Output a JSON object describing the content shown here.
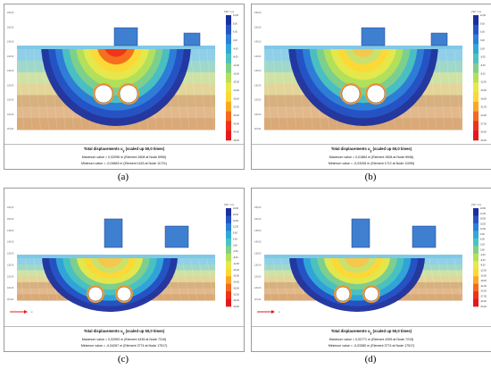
{
  "legend": {
    "unit": "[*10⁻³ m]",
    "colors": [
      "#e31a1c",
      "#f0321a",
      "#f46a1e",
      "#f9a825",
      "#fdd835",
      "#e8e84a",
      "#b5e05a",
      "#7fd08a",
      "#4cc3c0",
      "#31a9d8",
      "#2e7fd8",
      "#2554c6",
      "#1b2f9e"
    ]
  },
  "panels": [
    {
      "id": "a",
      "caption": "(a)",
      "title": "Total displacements u",
      "sub": "y",
      "title_suffix": "(scaled up 50,0 times)",
      "max_line": "Maximum value = 0,02096 m (Element 2608 at Node 6955)",
      "min_line": "Minimum value = -0,04863 m (Element 1163 at Node 11721)",
      "legend_labels": [
        "12,00",
        "8,00",
        "4,00",
        "0,00",
        "-4,00",
        "-8,00",
        "-12,00",
        "-16,00",
        "-20,00",
        "-24,00",
        "-28,00",
        "-32,00",
        "-36,00",
        "-40,00",
        "-44,00",
        "-48,00"
      ],
      "center_hot": true
    },
    {
      "id": "b",
      "caption": "(b)",
      "title": "Total displacements u",
      "sub": "y",
      "title_suffix": "(scaled up 50,0 times)",
      "max_line": "Maximum value = 0,01884 m (Element 2608 at Node 6946)",
      "min_line": "Minimum value = -0,03206 m (Element 1712 at Node 11095)",
      "legend_labels": [
        "12,00",
        "9,00",
        "6,00",
        "3,00",
        "0,00",
        "-3,00",
        "-6,00",
        "-9,00",
        "-12,00",
        "-15,00",
        "-18,00",
        "-21,00",
        "-24,00",
        "-27,00",
        "-30,00",
        "-33,00"
      ],
      "center_hot": false
    },
    {
      "id": "c",
      "caption": "(c)",
      "title": "Total displacements u",
      "sub": "y",
      "title_suffix": "(scaled up 50,0 times)",
      "max_line": "Maximum value = 0,02953 m (Element 4435 at Node 7216)",
      "min_line": "Minimum value = -0,04267 m (Element 3774 at Node 17517)",
      "legend_labels": [
        "24,00",
        "20,00",
        "16,00",
        "12,00",
        "8,00",
        "4,00",
        "0,00",
        "-4,00",
        "-8,00",
        "-12,00",
        "-16,00",
        "-20,00",
        "-24,00",
        "-28,00",
        "-32,00",
        "-36,00",
        "-40,00"
      ],
      "center_hot": false
    },
    {
      "id": "d",
      "caption": "(d)",
      "title": "Total displacements u",
      "sub": "y",
      "title_suffix": "(scaled up 50,0 times)",
      "max_line": "Maximum value = 0,02771 m (Element 4399 at Node 7215)",
      "min_line": "Minimum value = -0,03380 m (Element 3774 at Node 17517)",
      "legend_labels": [
        "24,00",
        "21,00",
        "18,00",
        "15,00",
        "12,00",
        "9,00",
        "6,00",
        "3,00",
        "0,00",
        "-3,00",
        "-6,00",
        "-9,00",
        "-12,00",
        "-15,00",
        "-18,00",
        "-21,00",
        "-24,00",
        "-27,00",
        "-30,00",
        "-33,00"
      ],
      "center_hot": false
    }
  ],
  "top_ticks": [
    "-40,00",
    "-30,00",
    "-20,00",
    "-10,00",
    "0,00",
    "10,00",
    "20,00",
    "30,00",
    "40,00"
  ],
  "side_ticks": [
    "155,00",
    "150,00",
    "145,00",
    "140,00",
    "135,00",
    "130,00",
    "125,00",
    "120,00",
    "115,00"
  ],
  "arrow_label": "x"
}
